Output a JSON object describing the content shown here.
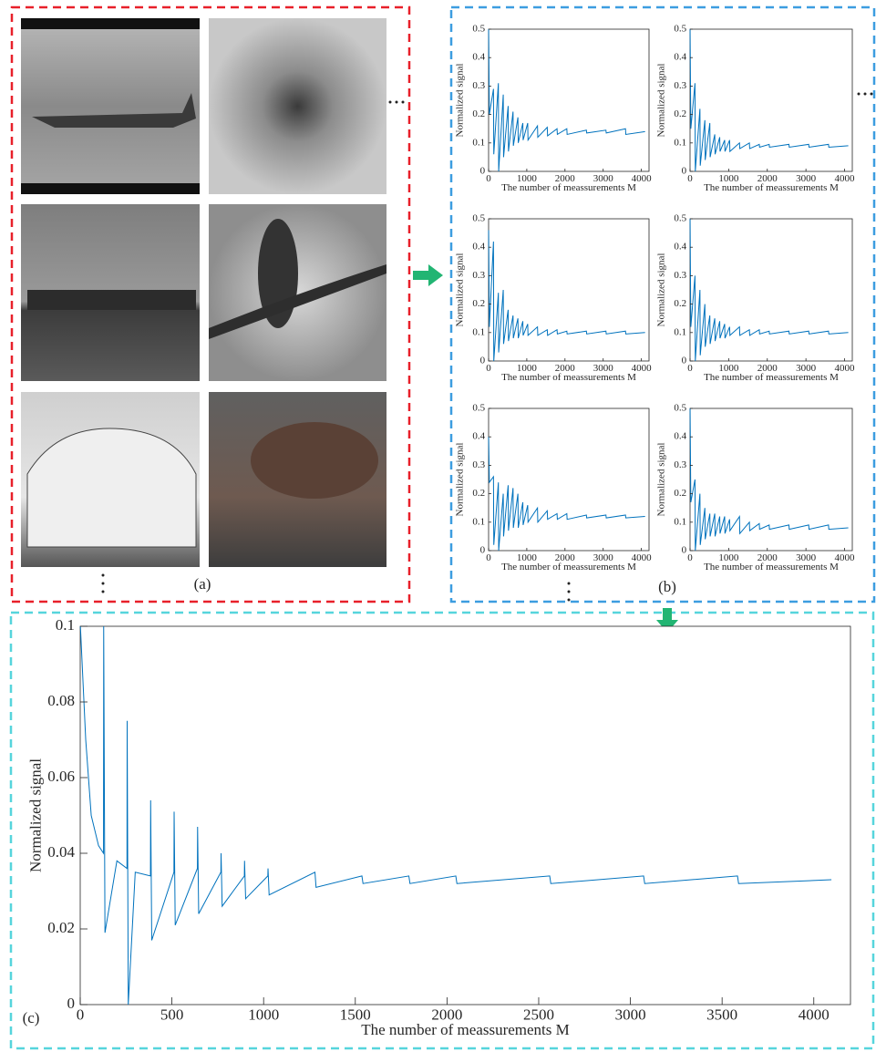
{
  "figure": {
    "panel_labels": [
      "(a)",
      "(b)",
      "(c)"
    ]
  },
  "chart_data": [
    {
      "type": "line",
      "xlabel": "The number of meassurements M",
      "ylabel": "Normalized signal",
      "xlim": [
        0,
        4200
      ],
      "ylim": [
        0,
        0.5
      ],
      "xticks": [
        0,
        1000,
        2000,
        3000,
        4000
      ],
      "yticks": [
        0,
        0.1,
        0.2,
        0.3,
        0.4,
        0.5
      ],
      "series": [
        {
          "color": "#0072bd",
          "x": [
            1,
            20,
            128,
            136,
            256,
            264,
            384,
            392,
            512,
            520,
            640,
            648,
            768,
            776,
            896,
            904,
            1024,
            1032,
            1280,
            1288,
            1536,
            1544,
            1792,
            1800,
            2048,
            2056,
            2560,
            2568,
            3072,
            3080,
            3584,
            3592,
            4096
          ],
          "values": [
            0.5,
            0.2,
            0.29,
            0.06,
            0.31,
            0.0,
            0.27,
            0.05,
            0.23,
            0.07,
            0.21,
            0.09,
            0.19,
            0.1,
            0.17,
            0.11,
            0.17,
            0.11,
            0.16,
            0.12,
            0.155,
            0.125,
            0.15,
            0.13,
            0.15,
            0.13,
            0.145,
            0.135,
            0.145,
            0.135,
            0.15,
            0.13,
            0.14
          ]
        }
      ]
    },
    {
      "type": "line",
      "xlabel": "The number of meassurements M",
      "ylabel": "Normalized signal",
      "xlim": [
        0,
        4200
      ],
      "ylim": [
        0,
        0.5
      ],
      "xticks": [
        0,
        1000,
        2000,
        3000,
        4000
      ],
      "yticks": [
        0,
        0.1,
        0.2,
        0.3,
        0.4,
        0.5
      ],
      "series": [
        {
          "color": "#0072bd",
          "x": [
            1,
            20,
            128,
            136,
            256,
            264,
            384,
            392,
            512,
            520,
            640,
            648,
            768,
            776,
            896,
            904,
            1024,
            1032,
            1280,
            1288,
            1536,
            1544,
            1792,
            1800,
            2048,
            2056,
            2560,
            2568,
            3072,
            3080,
            3584,
            3592,
            4096
          ],
          "values": [
            0.5,
            0.15,
            0.31,
            0.0,
            0.22,
            0.02,
            0.18,
            0.04,
            0.17,
            0.05,
            0.13,
            0.06,
            0.12,
            0.07,
            0.11,
            0.07,
            0.11,
            0.07,
            0.1,
            0.08,
            0.1,
            0.08,
            0.095,
            0.085,
            0.095,
            0.085,
            0.095,
            0.085,
            0.095,
            0.085,
            0.095,
            0.085,
            0.09
          ]
        }
      ]
    },
    {
      "type": "line",
      "xlabel": "The number of meassurements M",
      "ylabel": "Normalized signal",
      "xlim": [
        0,
        4200
      ],
      "ylim": [
        0,
        0.5
      ],
      "xticks": [
        0,
        1000,
        2000,
        3000,
        4000
      ],
      "yticks": [
        0,
        0.1,
        0.2,
        0.3,
        0.4,
        0.5
      ],
      "series": [
        {
          "color": "#0072bd",
          "x": [
            1,
            20,
            128,
            136,
            256,
            264,
            384,
            392,
            512,
            520,
            640,
            648,
            768,
            776,
            896,
            904,
            1024,
            1032,
            1280,
            1288,
            1536,
            1544,
            1792,
            1800,
            2048,
            2056,
            2560,
            2568,
            3072,
            3080,
            3584,
            3592,
            4096
          ],
          "values": [
            0.46,
            0.12,
            0.42,
            0.0,
            0.24,
            0.03,
            0.25,
            0.06,
            0.18,
            0.07,
            0.16,
            0.08,
            0.15,
            0.08,
            0.14,
            0.09,
            0.13,
            0.09,
            0.12,
            0.09,
            0.11,
            0.09,
            0.11,
            0.095,
            0.105,
            0.095,
            0.105,
            0.095,
            0.105,
            0.095,
            0.105,
            0.095,
            0.1
          ]
        }
      ]
    },
    {
      "type": "line",
      "xlabel": "The number of meassurements M",
      "ylabel": "Normalized signal",
      "xlim": [
        0,
        4200
      ],
      "ylim": [
        0,
        0.5
      ],
      "xticks": [
        0,
        1000,
        2000,
        3000,
        4000
      ],
      "yticks": [
        0,
        0.1,
        0.2,
        0.3,
        0.4,
        0.5
      ],
      "series": [
        {
          "color": "#0072bd",
          "x": [
            1,
            20,
            128,
            136,
            256,
            264,
            384,
            392,
            512,
            520,
            640,
            648,
            768,
            776,
            896,
            904,
            1024,
            1032,
            1280,
            1288,
            1536,
            1544,
            1792,
            1800,
            2048,
            2056,
            2560,
            2568,
            3072,
            3080,
            3584,
            3592,
            4096
          ],
          "values": [
            0.5,
            0.12,
            0.3,
            0.0,
            0.25,
            0.02,
            0.2,
            0.05,
            0.16,
            0.06,
            0.15,
            0.07,
            0.14,
            0.08,
            0.13,
            0.08,
            0.12,
            0.09,
            0.12,
            0.09,
            0.11,
            0.09,
            0.11,
            0.095,
            0.105,
            0.095,
            0.105,
            0.095,
            0.105,
            0.095,
            0.105,
            0.095,
            0.1
          ]
        }
      ]
    },
    {
      "type": "line",
      "xlabel": "The number of meassurements M",
      "ylabel": "Normalized signal",
      "xlim": [
        0,
        4200
      ],
      "ylim": [
        0,
        0.5
      ],
      "xticks": [
        0,
        1000,
        2000,
        3000,
        4000
      ],
      "yticks": [
        0,
        0.1,
        0.2,
        0.3,
        0.4,
        0.5
      ],
      "series": [
        {
          "color": "#0072bd",
          "x": [
            1,
            20,
            128,
            136,
            256,
            264,
            384,
            392,
            512,
            520,
            640,
            648,
            768,
            776,
            896,
            904,
            1024,
            1032,
            1280,
            1288,
            1536,
            1544,
            1792,
            1800,
            2048,
            2056,
            2560,
            2568,
            3072,
            3080,
            3584,
            3592,
            4096
          ],
          "values": [
            0.4,
            0.24,
            0.26,
            0.02,
            0.24,
            0.0,
            0.2,
            0.05,
            0.23,
            0.07,
            0.22,
            0.08,
            0.2,
            0.08,
            0.17,
            0.09,
            0.16,
            0.1,
            0.15,
            0.1,
            0.14,
            0.11,
            0.13,
            0.11,
            0.13,
            0.11,
            0.125,
            0.115,
            0.125,
            0.115,
            0.125,
            0.115,
            0.12
          ]
        }
      ]
    },
    {
      "type": "line",
      "xlabel": "The number of meassurements M",
      "ylabel": "Normalized signal",
      "xlim": [
        0,
        4200
      ],
      "ylim": [
        0,
        0.5
      ],
      "xticks": [
        0,
        1000,
        2000,
        3000,
        4000
      ],
      "yticks": [
        0,
        0.1,
        0.2,
        0.3,
        0.4,
        0.5
      ],
      "series": [
        {
          "color": "#0072bd",
          "x": [
            1,
            20,
            128,
            136,
            256,
            264,
            384,
            392,
            512,
            520,
            640,
            648,
            768,
            776,
            896,
            904,
            1024,
            1032,
            1280,
            1288,
            1536,
            1544,
            1792,
            1800,
            2048,
            2056,
            2560,
            2568,
            3072,
            3080,
            3584,
            3592,
            4096
          ],
          "values": [
            0.5,
            0.17,
            0.25,
            0.0,
            0.2,
            0.02,
            0.15,
            0.04,
            0.13,
            0.05,
            0.13,
            0.05,
            0.12,
            0.06,
            0.12,
            0.06,
            0.11,
            0.07,
            0.12,
            0.06,
            0.1,
            0.07,
            0.095,
            0.075,
            0.09,
            0.075,
            0.09,
            0.075,
            0.09,
            0.075,
            0.09,
            0.075,
            0.08
          ]
        }
      ]
    },
    {
      "type": "line",
      "xlabel": "The number of meassurements M",
      "ylabel": "Normalized signal",
      "xlim": [
        0,
        4200
      ],
      "ylim": [
        0,
        0.1
      ],
      "xticks": [
        0,
        500,
        1000,
        1500,
        2000,
        2500,
        3000,
        3500,
        4000
      ],
      "yticks": [
        0,
        0.02,
        0.04,
        0.06,
        0.08,
        0.1
      ],
      "series": [
        {
          "color": "#0072bd",
          "x": [
            1,
            30,
            60,
            100,
            127,
            128,
            135,
            200,
            255,
            256,
            262,
            300,
            383,
            384,
            390,
            511,
            512,
            518,
            639,
            640,
            646,
            767,
            768,
            774,
            895,
            896,
            902,
            1023,
            1024,
            1030,
            1280,
            1286,
            1536,
            1542,
            1792,
            1798,
            2048,
            2054,
            2560,
            2566,
            3072,
            3078,
            3584,
            3590,
            4096
          ],
          "values": [
            0.1,
            0.07,
            0.05,
            0.042,
            0.04,
            0.1,
            0.019,
            0.038,
            0.036,
            0.075,
            0.0,
            0.035,
            0.034,
            0.054,
            0.017,
            0.035,
            0.051,
            0.021,
            0.036,
            0.047,
            0.024,
            0.035,
            0.04,
            0.026,
            0.034,
            0.038,
            0.028,
            0.034,
            0.036,
            0.029,
            0.035,
            0.031,
            0.034,
            0.032,
            0.034,
            0.032,
            0.034,
            0.032,
            0.034,
            0.032,
            0.034,
            0.032,
            0.034,
            0.032,
            0.033
          ]
        }
      ]
    }
  ]
}
